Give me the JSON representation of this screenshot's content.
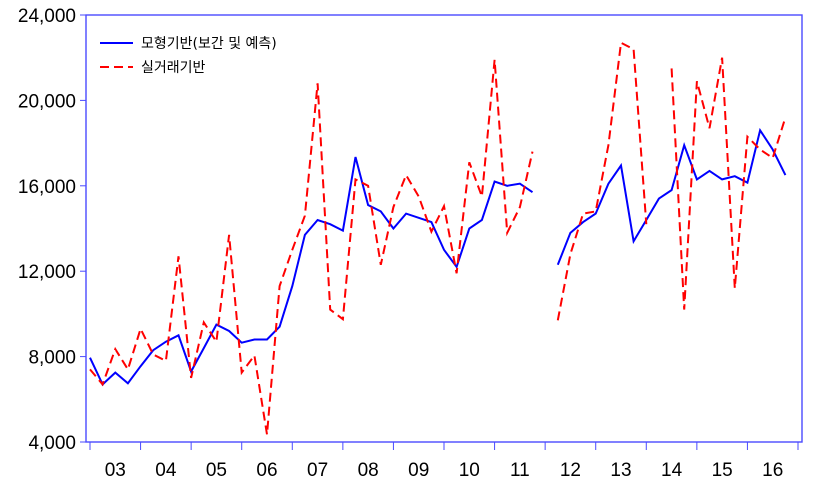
{
  "chart_data": {
    "type": "line",
    "title": "",
    "xlabel": "",
    "ylabel": "",
    "ylim": [
      4000,
      24000
    ],
    "yticks": [
      "4,000",
      "8,000",
      "12,000",
      "16,000",
      "20,000",
      "24,000"
    ],
    "ytick_values": [
      4000,
      8000,
      12000,
      16000,
      20000,
      24000
    ],
    "xticks": [
      "03",
      "04",
      "05",
      "06",
      "07",
      "08",
      "09",
      "10",
      "11",
      "12",
      "13",
      "14",
      "15",
      "16"
    ],
    "x_start_year": 2003,
    "x_start_quarter": 1,
    "x_end_year": 2016,
    "x_end_quarter": 4,
    "grid": false,
    "legend_position": "top-left",
    "series": [
      {
        "name": "모형기반(보간 및 예측)",
        "color": "#0000ff",
        "style": "solid",
        "values": [
          7950,
          6700,
          7250,
          6750,
          7550,
          8300,
          8700,
          9000,
          7300,
          8400,
          9500,
          9200,
          8650,
          8800,
          8800,
          9400,
          11300,
          13700,
          14400,
          14200,
          13900,
          17350,
          15100,
          14800,
          14000,
          14700,
          14500,
          14300,
          13000,
          12200,
          14000,
          14400,
          16200,
          16000,
          16100,
          15700,
          null,
          12300,
          13800,
          14300,
          14700,
          16100,
          16950,
          13400,
          14400,
          15400,
          15800,
          17900,
          16300,
          16700,
          16300,
          16450,
          16150,
          18600,
          17700,
          16500
        ]
      },
      {
        "name": "실거래기반",
        "color": "#ff0000",
        "style": "dashed",
        "values": [
          7400,
          6700,
          8350,
          7400,
          9300,
          8100,
          7800,
          12700,
          7000,
          9600,
          8700,
          13700,
          7250,
          8050,
          4350,
          11300,
          13000,
          14600,
          20800,
          10200,
          9750,
          16300,
          16000,
          12300,
          15000,
          16500,
          15500,
          13850,
          15050,
          11900,
          17100,
          15500,
          21900,
          13800,
          15000,
          17600,
          null,
          9700,
          12800,
          14700,
          14800,
          17900,
          22700,
          22400,
          14200,
          null,
          21500,
          10200,
          20900,
          18700,
          22000,
          11200,
          18300,
          17700,
          17300,
          19200
        ]
      }
    ]
  }
}
